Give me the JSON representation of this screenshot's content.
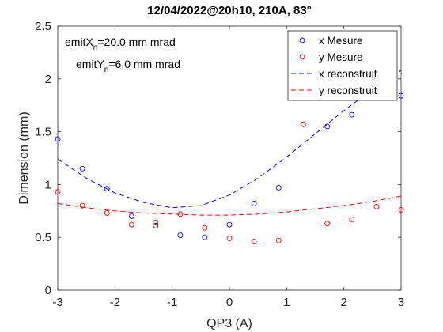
{
  "chart_data": {
    "type": "scatter",
    "title": "12/04/2022@20h10, 210A, 83°",
    "xlabel": "QP3 (A)",
    "ylabel": "Dimension (mm)",
    "xlim": [
      -3,
      3
    ],
    "ylim": [
      0,
      2.5
    ],
    "xticks": [
      -3,
      -2,
      -1,
      0,
      1,
      2,
      3
    ],
    "xtick_labels": [
      "-3",
      "-2",
      "-1",
      "0",
      "1",
      "2",
      "3"
    ],
    "yticks": [
      0,
      0.5,
      1,
      1.5,
      2,
      2.5
    ],
    "ytick_labels": [
      "0",
      "0.5",
      "1",
      "1.5",
      "2",
      "2.5"
    ],
    "grid": false,
    "legend_position": "top-right",
    "annotations": [
      {
        "prefix": "emitX",
        "sub": "n",
        "suffix": "=20.0 mm mrad"
      },
      {
        "prefix": "emitY",
        "sub": "n",
        "suffix": "=6.0 mm mrad"
      }
    ],
    "series": [
      {
        "name": "x Mesure",
        "kind": "markers",
        "color": "#0000ff",
        "x": [
          -3.0,
          -2.57,
          -2.14,
          -1.71,
          -1.29,
          -0.86,
          -0.43,
          0.0,
          0.43,
          0.86,
          1.71,
          2.14,
          3.0
        ],
        "y": [
          1.43,
          1.15,
          0.96,
          0.7,
          0.61,
          0.52,
          0.5,
          0.62,
          0.82,
          0.97,
          1.55,
          1.66,
          1.84
        ]
      },
      {
        "name": "y Mesure",
        "kind": "markers",
        "color": "#ff0000",
        "x": [
          -3.0,
          -2.57,
          -2.14,
          -1.71,
          -1.29,
          -0.86,
          -0.43,
          0.0,
          0.43,
          0.86,
          1.29,
          1.71,
          2.14,
          2.57,
          3.0
        ],
        "y": [
          0.93,
          0.8,
          0.73,
          0.62,
          0.64,
          0.72,
          0.59,
          0.49,
          0.46,
          0.47,
          1.57,
          0.63,
          0.67,
          0.79,
          0.76
        ]
      },
      {
        "name": "x reconstruit",
        "kind": "dashed-line",
        "color": "#0000ff",
        "x": [
          -3.0,
          -2.5,
          -2.0,
          -1.5,
          -1.0,
          -0.5,
          0.0,
          0.5,
          1.0,
          1.5,
          2.0,
          2.5,
          3.0
        ],
        "y": [
          1.24,
          1.06,
          0.92,
          0.83,
          0.78,
          0.8,
          0.9,
          1.06,
          1.26,
          1.48,
          1.7,
          1.9,
          2.08
        ]
      },
      {
        "name": "y reconstruit",
        "kind": "dashed-line",
        "color": "#ff0000",
        "x": [
          -3.0,
          -2.5,
          -2.0,
          -1.5,
          -1.0,
          -0.5,
          0.0,
          0.5,
          1.0,
          1.5,
          2.0,
          2.5,
          3.0
        ],
        "y": [
          0.82,
          0.78,
          0.75,
          0.73,
          0.72,
          0.71,
          0.71,
          0.72,
          0.74,
          0.77,
          0.8,
          0.84,
          0.89
        ]
      }
    ]
  }
}
